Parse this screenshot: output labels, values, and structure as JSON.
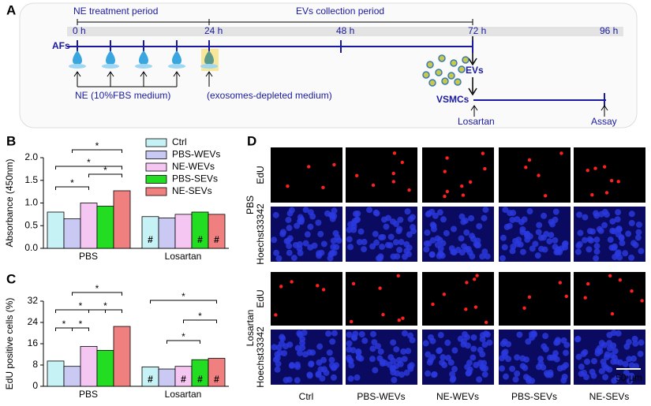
{
  "panel_a": {
    "label": "A",
    "periods": [
      "NE treatment period",
      "EVs collection period"
    ],
    "timepoints": [
      "0 h",
      "24 h",
      "48 h",
      "72 h",
      "96 h"
    ],
    "afs": "AFs",
    "evs": "EVs",
    "vsmcs": "VSMCs",
    "losartan": "Losartan",
    "assay": "Assay",
    "ne_medium": "NE (10%FBS medium)",
    "exo_medium": "(exosomes-depleted medium)"
  },
  "chart_data": [
    {
      "type": "bar",
      "panel_label": "B",
      "y_label": "Absorbance (450nm)",
      "categories": [
        "PBS",
        "Losartan"
      ],
      "series": [
        {
          "name": "Ctrl",
          "color": "#c6f2f6",
          "values": [
            0.8,
            0.7
          ]
        },
        {
          "name": "PBS-WEVs",
          "color": "#c9c9f4",
          "values": [
            0.65,
            0.67
          ]
        },
        {
          "name": "NE-WEVs",
          "color": "#f6c6f2",
          "values": [
            1.0,
            0.75
          ]
        },
        {
          "name": "PBS-SEVs",
          "color": "#22dd22",
          "values": [
            0.93,
            0.8
          ]
        },
        {
          "name": "NE-SEVs",
          "color": "#f08080",
          "values": [
            1.27,
            0.75
          ]
        }
      ],
      "ylim": [
        0,
        2.0
      ],
      "yticks": [
        {
          "value": 0,
          "label": "0.0"
        },
        {
          "value": 0.5,
          "label": "0.5"
        },
        {
          "value": 1.0,
          "label": "1.0"
        },
        {
          "value": 1.5,
          "label": "1.5"
        },
        {
          "value": 2.0,
          "label": "2.0"
        }
      ],
      "annotations": [
        "*",
        "*",
        "*",
        "*",
        "#",
        "#",
        "#"
      ]
    },
    {
      "type": "bar",
      "panel_label": "C",
      "y_label": "EdU positive cells (%)",
      "categories": [
        "PBS",
        "Losartan"
      ],
      "series": [
        {
          "name": "Ctrl",
          "color": "#c6f2f6",
          "values": [
            9.5,
            7.3
          ]
        },
        {
          "name": "PBS-WEVs",
          "color": "#c9c9f4",
          "values": [
            7.5,
            6.5
          ]
        },
        {
          "name": "NE-WEVs",
          "color": "#f6c6f2",
          "values": [
            15,
            7.5
          ]
        },
        {
          "name": "PBS-SEVs",
          "color": "#22dd22",
          "values": [
            13.5,
            10
          ]
        },
        {
          "name": "NE-SEVs",
          "color": "#f08080",
          "values": [
            22.5,
            10.5
          ]
        }
      ],
      "ylim": [
        0,
        32
      ],
      "yticks": [
        0,
        8,
        16,
        24,
        32
      ],
      "annotations": [
        "*",
        "*",
        "*",
        "*",
        "*",
        "*",
        "*",
        "*",
        "#",
        "#",
        "#",
        "#"
      ]
    }
  ],
  "panel_d": {
    "label": "D",
    "groups": [
      "PBS",
      "Losartan"
    ],
    "stains": [
      "EdU",
      "Hoechst33342"
    ],
    "columns": [
      "Ctrl",
      "PBS-WEVs",
      "NE-WEVs",
      "PBS-SEVs",
      "NE-SEVs"
    ],
    "scale_bar": "50 μm"
  }
}
